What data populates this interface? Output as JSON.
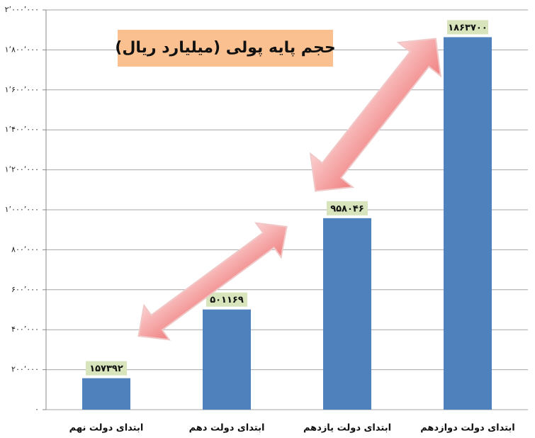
{
  "chart_data": {
    "type": "bar",
    "title": "حجم پایه پولی (میلیارد ریال)",
    "categories": [
      "ابتدای دولت نهم",
      "ابتدای دولت دهم",
      "ابتدای دولت یازدهم",
      "ابتدای دولت دوازدهم"
    ],
    "values": [
      157392,
      501169,
      958046,
      1863700
    ],
    "value_labels": [
      "۱۵۷۳۹۲",
      "۵۰۱۱۶۹",
      "۹۵۸۰۴۶",
      "۱۸۶۳۷۰۰"
    ],
    "color": "#4f81bd",
    "ylim": [
      0,
      2000000
    ],
    "yticks": [
      {
        "value": 0,
        "label": "۰"
      },
      {
        "value": 200000,
        "label": "۲۰۰٬۰۰۰"
      },
      {
        "value": 400000,
        "label": "۴۰۰٬۰۰۰"
      },
      {
        "value": 600000,
        "label": "۶۰۰٬۰۰۰"
      },
      {
        "value": 800000,
        "label": "۸۰۰٬۰۰۰"
      },
      {
        "value": 1000000,
        "label": "۱٬۰۰۰٬۰۰۰"
      },
      {
        "value": 1200000,
        "label": "۱٬۲۰۰٬۰۰۰"
      },
      {
        "value": 1400000,
        "label": "۱٬۴۰۰٬۰۰۰"
      },
      {
        "value": 1600000,
        "label": "۱٬۶۰۰٬۰۰۰"
      },
      {
        "value": 1800000,
        "label": "۱٬۸۰۰٬۰۰۰"
      },
      {
        "value": 2000000,
        "label": "۲٬۰۰۰٬۰۰۰"
      }
    ],
    "grid": true
  }
}
